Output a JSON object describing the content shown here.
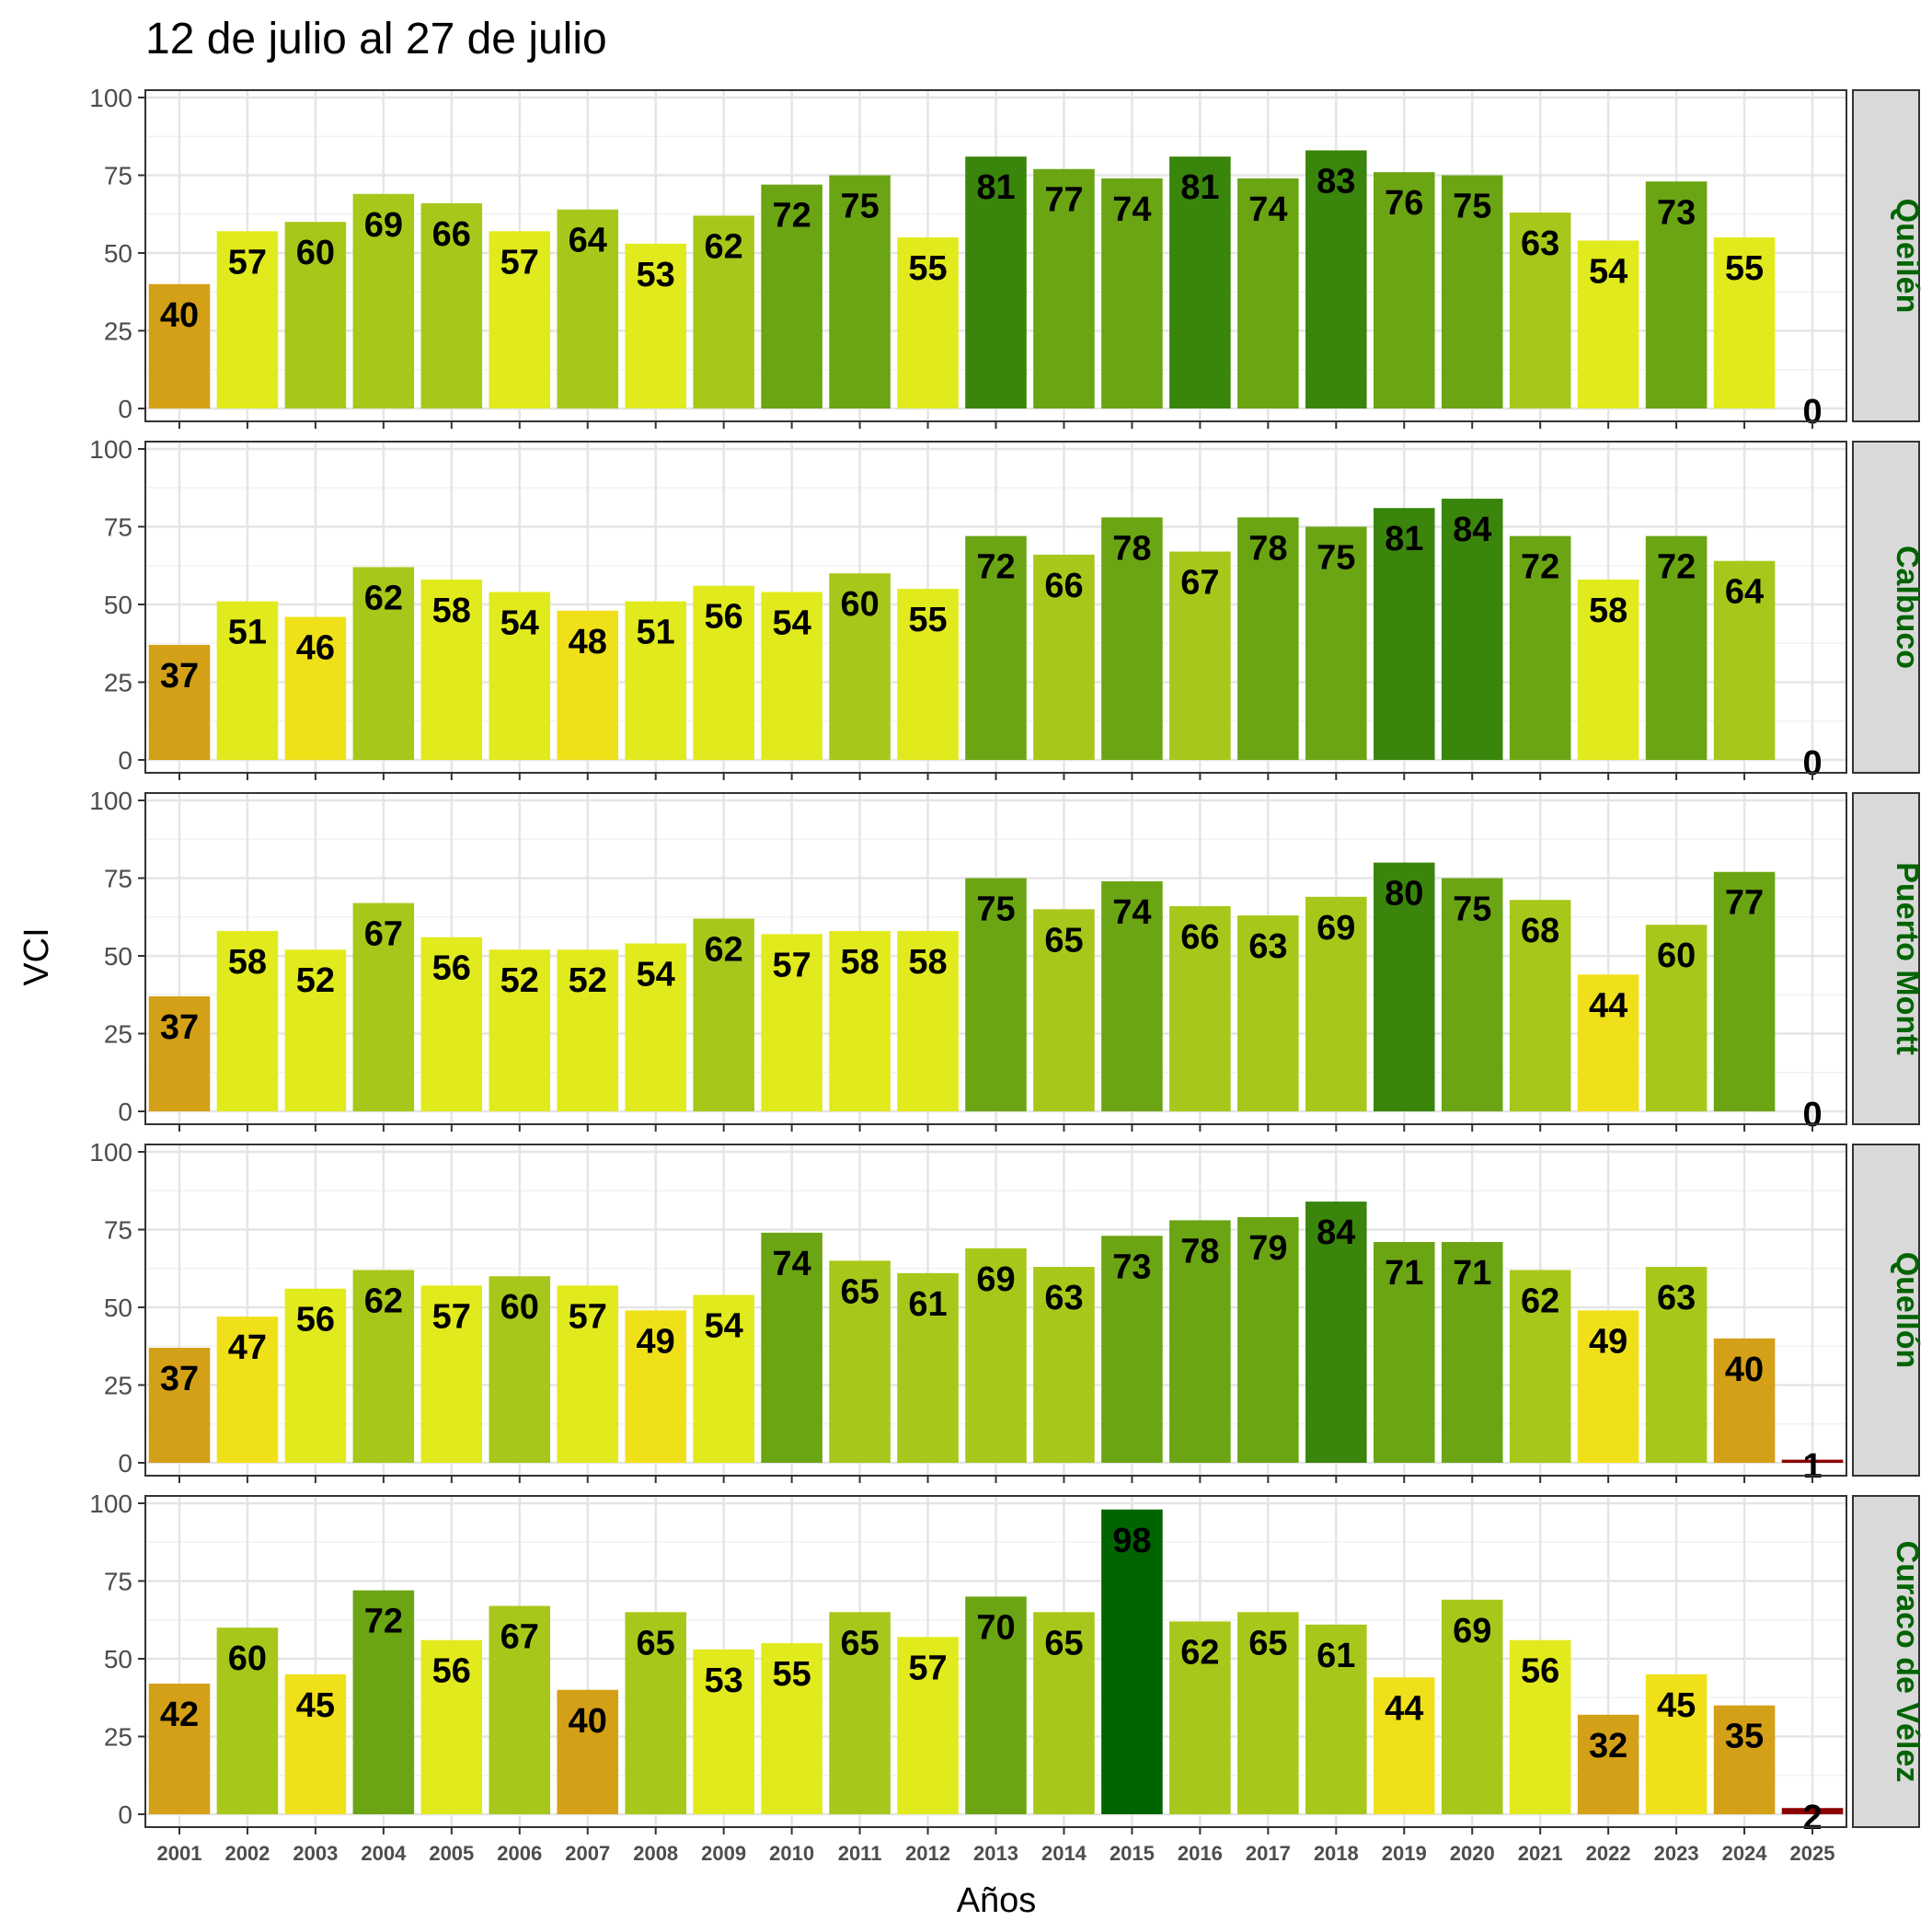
{
  "chart_data": {
    "type": "bar",
    "title": "12 de julio al 27 de julio",
    "xlabel": "Años",
    "ylabel": "VCI",
    "ylim": [
      0,
      100
    ],
    "yticks": [
      "0",
      "25",
      "50",
      "75",
      "100"
    ],
    "grid": true,
    "categories": [
      "2001",
      "2002",
      "2003",
      "2004",
      "2005",
      "2006",
      "2007",
      "2008",
      "2009",
      "2010",
      "2011",
      "2012",
      "2013",
      "2014",
      "2015",
      "2016",
      "2017",
      "2018",
      "2019",
      "2020",
      "2021",
      "2022",
      "2023",
      "2024",
      "2025"
    ],
    "series": [
      {
        "name": "Queilén",
        "values": [
          40,
          57,
          60,
          69,
          66,
          57,
          64,
          53,
          62,
          72,
          75,
          55,
          81,
          77,
          74,
          81,
          74,
          83,
          76,
          75,
          63,
          54,
          73,
          55,
          0
        ]
      },
      {
        "name": "Calbuco",
        "values": [
          37,
          51,
          46,
          62,
          58,
          54,
          48,
          51,
          56,
          54,
          60,
          55,
          72,
          66,
          78,
          67,
          78,
          75,
          81,
          84,
          72,
          58,
          72,
          64,
          0
        ]
      },
      {
        "name": "Puerto Montt",
        "values": [
          37,
          58,
          52,
          67,
          56,
          52,
          52,
          54,
          62,
          57,
          58,
          58,
          75,
          65,
          74,
          66,
          63,
          69,
          80,
          75,
          68,
          44,
          60,
          77,
          0
        ]
      },
      {
        "name": "Quellón",
        "values": [
          37,
          47,
          56,
          62,
          57,
          60,
          57,
          49,
          54,
          74,
          65,
          61,
          69,
          63,
          73,
          78,
          79,
          84,
          71,
          71,
          62,
          49,
          63,
          40,
          1
        ]
      },
      {
        "name": "Curaco de Vélez",
        "values": [
          42,
          60,
          45,
          72,
          56,
          67,
          40,
          65,
          53,
          55,
          65,
          57,
          70,
          65,
          98,
          62,
          65,
          61,
          44,
          69,
          56,
          32,
          45,
          35,
          2
        ]
      }
    ],
    "color_scale": {
      "very_low": "#8b0000",
      "low": "#d4a017",
      "mid_low": "#f0e01a",
      "mid": "#e1ea1c",
      "mid_high": "#a7c81a",
      "high": "#6ba514",
      "very_high": "#3a850c",
      "extreme": "#006400"
    },
    "strip_text_color": "#006400",
    "strip_fill": "#d9d9d9"
  }
}
